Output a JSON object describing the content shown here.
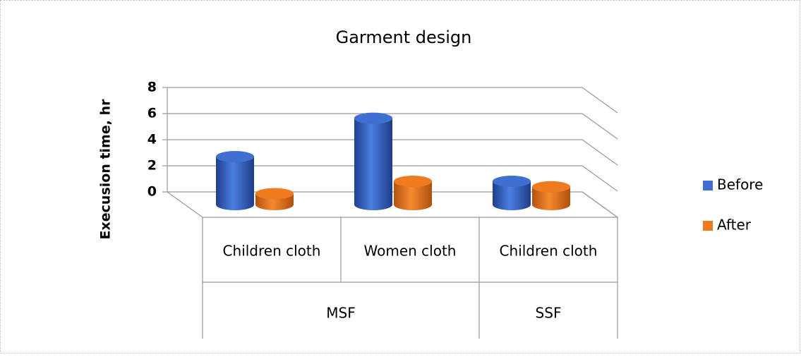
{
  "chart_data": {
    "type": "bar3d",
    "title": "Garment design",
    "y_label": "Execusion time, hr",
    "categories": [
      "Children cloth",
      "Women cloth",
      "Children cloth"
    ],
    "category_groups": [
      "MSF",
      "MSF",
      "SSF"
    ],
    "series": [
      {
        "name": "Before",
        "color": "#3f6fd0",
        "values": [
          3.5,
          6.3,
          1.7
        ]
      },
      {
        "name": "After",
        "color": "#f07a1e",
        "values": [
          0.8,
          1.7,
          1.3
        ]
      }
    ],
    "ylim": [
      0,
      8
    ],
    "yticks": [
      0,
      2,
      4,
      6,
      8
    ],
    "grid": true,
    "legend": "right"
  }
}
